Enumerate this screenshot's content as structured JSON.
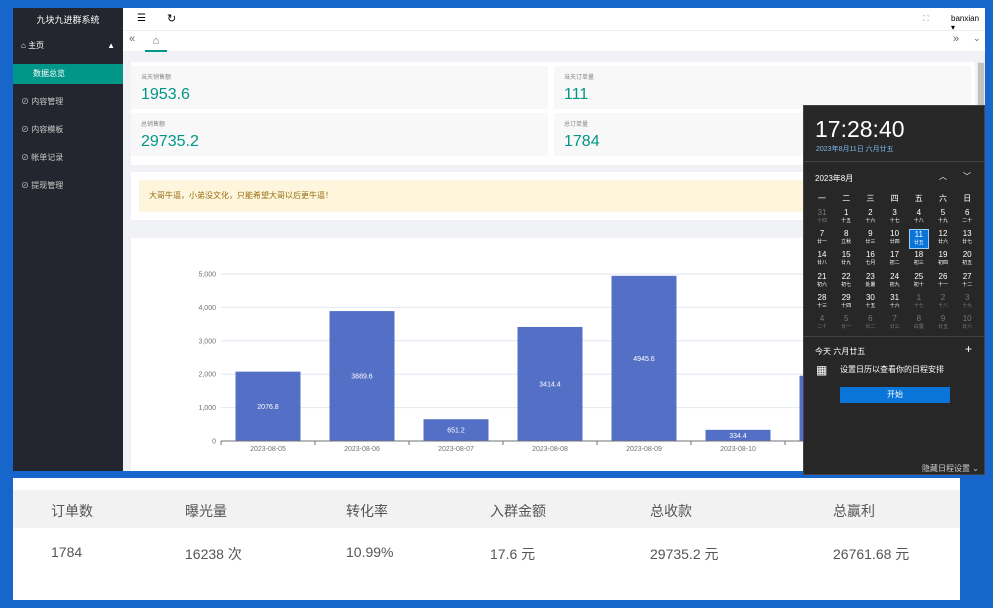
{
  "sidebar": {
    "title": "九块九进群系统",
    "home": "主页",
    "active": "数据总览",
    "menu": [
      "内容管理",
      "内容模板",
      "帐单记录",
      "提现管理"
    ]
  },
  "topbar": {
    "user": "banxian"
  },
  "stats": [
    {
      "label": "当天销售额",
      "value": "1953.6"
    },
    {
      "label": "当天订单量",
      "value": "111"
    },
    {
      "label": "总销售额",
      "value": "29735.2"
    },
    {
      "label": "总订单量",
      "value": "1784"
    }
  ],
  "notice": "大哥牛逼，小弟没文化，只能希望大哥以后更牛逼！",
  "chart": {
    "type": "bar",
    "categories": [
      "2023-08-05",
      "2023-08-06",
      "2023-08-07",
      "2023-08-08",
      "2023-08-09",
      "2023-08-10",
      null
    ],
    "values": [
      2076.8,
      3889.6,
      651.2,
      3414.4,
      4945.6,
      334.4,
      1953.6
    ],
    "color": "#5470c6",
    "ylim": [
      0,
      5000
    ],
    "yticks": [
      0,
      {
        "value": 1000,
        "label": "1,000"
      },
      {
        "value": 2000,
        "label": "2,000"
      },
      {
        "value": 3000,
        "label": "3,000"
      },
      {
        "value": 4000,
        "label": "4,000"
      },
      {
        "value": 5000,
        "label": "5,000"
      }
    ],
    "grid": true
  },
  "calendar": {
    "time": "17:28:40",
    "date": "2023年8月11日 六月廿五",
    "month": "2023年8月",
    "weekdays": [
      "一",
      "二",
      "三",
      "四",
      "五",
      "六",
      "日"
    ],
    "days": [
      {
        "day": "31",
        "lunar": "十四"
      },
      {
        "day": "1",
        "lunar": "十五"
      },
      {
        "day": "2",
        "lunar": "十六"
      },
      {
        "day": "3",
        "lunar": "十七"
      },
      {
        "day": "4",
        "lunar": "十八"
      },
      {
        "day": "5",
        "lunar": "十九"
      },
      {
        "day": "6",
        "lunar": "二十"
      },
      {
        "day": "7",
        "lunar": "廿一"
      },
      {
        "day": "8",
        "lunar": "立秋"
      },
      {
        "day": "9",
        "lunar": "廿三"
      },
      {
        "day": "10",
        "lunar": "廿四"
      },
      {
        "day": "11",
        "lunar": "廿五"
      },
      {
        "day": "12",
        "lunar": "廿六"
      },
      {
        "day": "13",
        "lunar": "廿七"
      },
      {
        "day": "14",
        "lunar": "廿八"
      },
      {
        "day": "15",
        "lunar": "廿九"
      },
      {
        "day": "16",
        "lunar": "七月"
      },
      {
        "day": "17",
        "lunar": "初二"
      },
      {
        "day": "18",
        "lunar": "初三"
      },
      {
        "day": "19",
        "lunar": "初四"
      },
      {
        "day": "20",
        "lunar": "初五"
      },
      {
        "day": "21",
        "lunar": "初六"
      },
      {
        "day": "22",
        "lunar": "初七"
      },
      {
        "day": "23",
        "lunar": "处暑"
      },
      {
        "day": "24",
        "lunar": "初九"
      },
      {
        "day": "25",
        "lunar": "初十"
      },
      {
        "day": "26",
        "lunar": "十一"
      },
      {
        "day": "27",
        "lunar": "十二"
      },
      {
        "day": "28",
        "lunar": "十三"
      },
      {
        "day": "29",
        "lunar": "十四"
      },
      {
        "day": "30",
        "lunar": "十五"
      },
      {
        "day": "31",
        "lunar": "十六"
      },
      {
        "day": "1",
        "lunar": "十七"
      },
      {
        "day": "2",
        "lunar": "十八"
      },
      {
        "day": "3",
        "lunar": "十九"
      },
      {
        "day": "4",
        "lunar": "二十"
      },
      {
        "day": "5",
        "lunar": "廿一"
      },
      {
        "day": "6",
        "lunar": "廿二"
      },
      {
        "day": "7",
        "lunar": "廿三"
      },
      {
        "day": "8",
        "lunar": "白露"
      },
      {
        "day": "9",
        "lunar": "廿五"
      },
      {
        "day": "10",
        "lunar": "廿六"
      }
    ],
    "today": "今天 六月廿五",
    "hint": "设置日历以查看你的日程安排",
    "button": "开始",
    "footer": "隐藏日程设置"
  },
  "table": {
    "headers": [
      "订单数",
      "曝光量",
      "转化率",
      "入群金额",
      "总收款",
      "总赢利"
    ],
    "row": [
      "1784",
      "16238 次",
      "10.99%",
      "17.6 元",
      "29735.2 元",
      "26761.68 元"
    ]
  }
}
